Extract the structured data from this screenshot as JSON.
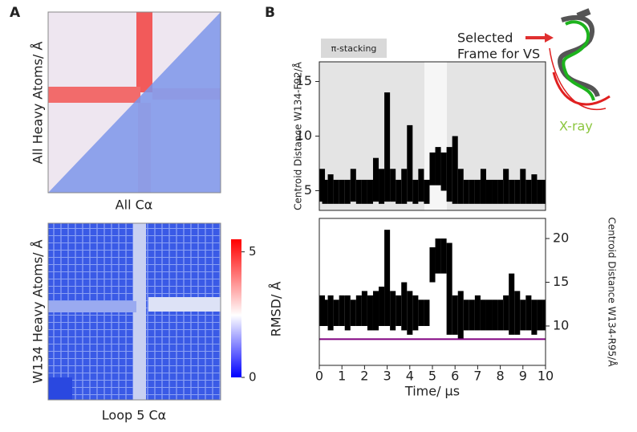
{
  "panel_labels": [
    "A",
    "B"
  ],
  "heatmaps": [
    {
      "ylabel": "All Heavy Atoms/ Å",
      "xlabel": "All Cα"
    },
    {
      "ylabel": "W134 Heavy Atoms/ Å",
      "xlabel": "Loop 5 Cα"
    }
  ],
  "colorbar": {
    "label": "RMSD/ Å",
    "lim": [
      0,
      5.5
    ],
    "ticks": [
      0,
      5
    ]
  },
  "annotations": {
    "selected": [
      "Selected",
      "Frame for VS"
    ],
    "xray": "X-ray"
  },
  "chart_data": [
    {
      "type": "band",
      "ylabel": "Centroid Distance W134-F92/Å",
      "annotation": "π-stacking",
      "color": "#000000",
      "x": [
        0,
        0.25,
        0.5,
        0.75,
        1,
        1.25,
        1.5,
        1.75,
        2,
        2.25,
        2.5,
        2.75,
        3,
        3.25,
        3.5,
        3.75,
        4,
        4.25,
        4.5,
        4.75,
        5,
        5.25,
        5.5,
        5.75,
        6,
        6.25,
        6.5,
        6.75,
        7,
        7.25,
        7.5,
        7.75,
        8,
        8.25,
        8.5,
        8.75,
        9,
        9.25,
        9.5,
        9.75,
        10
      ],
      "upper": [
        7,
        6,
        6.5,
        6,
        6,
        6,
        7,
        6,
        6,
        6,
        8,
        7,
        14,
        7,
        6,
        7,
        11,
        6,
        7,
        6,
        8.5,
        9,
        8.5,
        9,
        10,
        7,
        6,
        6,
        6,
        7,
        6,
        6,
        6,
        7,
        6,
        6,
        7,
        6,
        6.5,
        6,
        6
      ],
      "lower": [
        4,
        3.8,
        3.8,
        3.8,
        3.8,
        3.8,
        4,
        3.8,
        3.8,
        3.8,
        4,
        3.8,
        4,
        4,
        3.8,
        3.8,
        4,
        3.8,
        4,
        3.8,
        5.5,
        5.5,
        5,
        4,
        3.8,
        3.8,
        3.8,
        3.8,
        3.8,
        3.8,
        3.8,
        3.8,
        3.8,
        3.8,
        3.8,
        3.8,
        3.8,
        3.8,
        3.8,
        3.8,
        3.8
      ],
      "xlim": [
        0,
        10
      ],
      "ylim": [
        3.2,
        16.8
      ],
      "yticks": [
        5,
        10,
        15
      ]
    },
    {
      "type": "band",
      "ylabel": "Centroid Distance W134-R95/Å",
      "xlabel": "Time/ μs",
      "color": "#000000",
      "x": [
        0,
        0.25,
        0.5,
        0.75,
        1,
        1.25,
        1.5,
        1.75,
        2,
        2.25,
        2.5,
        2.75,
        3,
        3.25,
        3.5,
        3.75,
        4,
        4.25,
        4.5,
        4.75,
        5,
        5.25,
        5.5,
        5.75,
        6,
        6.25,
        6.5,
        6.75,
        7,
        7.25,
        7.5,
        7.75,
        8,
        8.25,
        8.5,
        8.75,
        9,
        9.25,
        9.5,
        9.75,
        10
      ],
      "upper": [
        13.5,
        13,
        13.5,
        13,
        13.5,
        13.5,
        13,
        13.5,
        14,
        13.5,
        14,
        14.5,
        21,
        14,
        13.5,
        15,
        14,
        13.5,
        13,
        13,
        19,
        20,
        20,
        19.5,
        13.5,
        14,
        13,
        13,
        13.5,
        13,
        13,
        13,
        13,
        13.5,
        16,
        14,
        13,
        13.5,
        13,
        13,
        13
      ],
      "lower": [
        10,
        10,
        9.5,
        10,
        10,
        9.5,
        10,
        10,
        10,
        9.5,
        9.5,
        10,
        10,
        9.5,
        10,
        9.5,
        9,
        9.5,
        10,
        10,
        15,
        16,
        16,
        9,
        9,
        8.5,
        9.5,
        9.5,
        9.5,
        9.5,
        9.5,
        9.5,
        9.5,
        9.5,
        9,
        9,
        9.5,
        9.5,
        9,
        9.5,
        9.5
      ],
      "hline": 8.5,
      "hline_color": "#800080",
      "xlim": [
        0,
        10
      ],
      "ylim": [
        5.5,
        22.3
      ],
      "xticks": [
        0,
        1,
        2,
        3,
        4,
        5,
        6,
        7,
        8,
        9,
        10
      ],
      "yticks": [
        10,
        15,
        20
      ]
    }
  ]
}
